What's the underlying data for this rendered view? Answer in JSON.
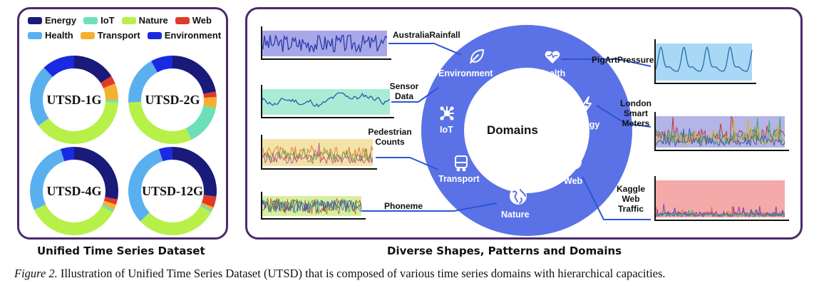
{
  "legend": [
    {
      "label": "Energy",
      "color": "#1a1a7a"
    },
    {
      "label": "IoT",
      "color": "#6ee0b8"
    },
    {
      "label": "Nature",
      "color": "#b8f04a"
    },
    {
      "label": "Web",
      "color": "#e03a2a"
    },
    {
      "label": "Health",
      "color": "#5ab0ef"
    },
    {
      "label": "Transport",
      "color": "#f5b030"
    },
    {
      "label": "Environment",
      "color": "#1a2ae0"
    }
  ],
  "datasets": [
    {
      "label": "UTSD-1G",
      "shares": {
        "Energy": 0.16,
        "Web": 0.03,
        "Transport": 0.06,
        "IoT": 0.01,
        "Nature": 0.39,
        "Health": 0.23,
        "Environment": 0.12
      }
    },
    {
      "label": "UTSD-2G",
      "shares": {
        "Energy": 0.22,
        "Web": 0.02,
        "Transport": 0.04,
        "IoT": 0.15,
        "Nature": 0.31,
        "Health": 0.18,
        "Environment": 0.08
      }
    },
    {
      "label": "UTSD-4G",
      "shares": {
        "Energy": 0.28,
        "Web": 0.02,
        "Transport": 0.02,
        "IoT": 0.01,
        "Nature": 0.35,
        "Health": 0.27,
        "Environment": 0.05
      }
    },
    {
      "label": "UTSD-12G",
      "shares": {
        "Energy": 0.27,
        "Web": 0.04,
        "Transport": 0.01,
        "IoT": 0.01,
        "Nature": 0.3,
        "Health": 0.32,
        "Environment": 0.05
      }
    }
  ],
  "left_caption": "Unified Time Series Dataset",
  "right_caption": "Diverse Shapes, Patterns and Domains",
  "center_title": "Domains",
  "ring_color": "#5b72e6",
  "ring_domains": [
    "Environment",
    "Health",
    "IoT",
    "Energy",
    "Transport",
    "Web",
    "Nature"
  ],
  "examples": [
    "AustraliaRainfall",
    "Sensor Data",
    "Pedestrian Counts",
    "Phoneme",
    "PigArtPressure",
    "London Smart Meters",
    "Kaggle Web Traffic"
  ],
  "figure_caption": {
    "prefix": "Figure 2.",
    "text": "Illustration of Unified Time Series Dataset (UTSD) that is composed of various time series domains with hierarchical capacities."
  }
}
